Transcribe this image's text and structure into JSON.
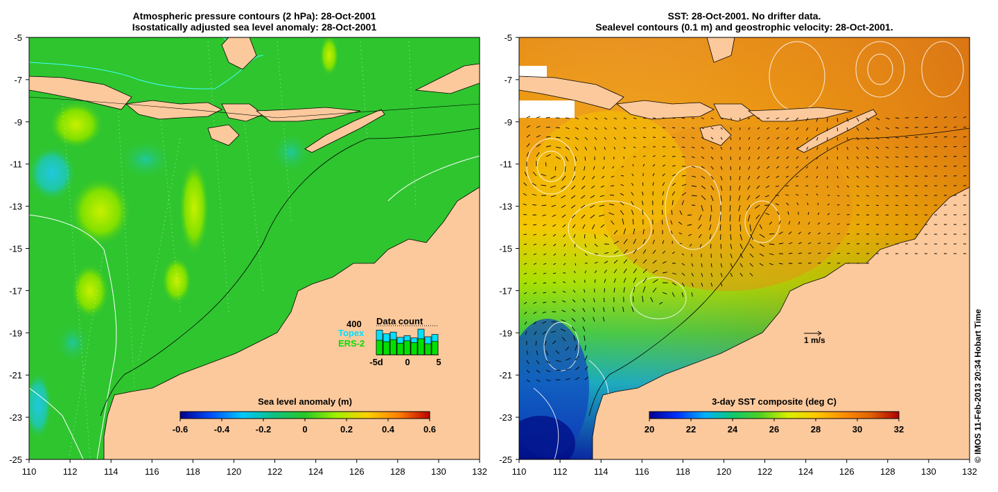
{
  "left_panel": {
    "title_line1": "Atmospheric pressure contours (2 hPa): 28-Oct-2001",
    "title_line2": "Isostatically adjusted sea level anomaly: 28-Oct-2001",
    "x_ticks": [
      "110",
      "112",
      "114",
      "116",
      "118",
      "120",
      "122",
      "124",
      "126",
      "128",
      "130",
      "132"
    ],
    "y_ticks": [
      "-5",
      "-7",
      "-9",
      "-11",
      "-13",
      "-15",
      "-17",
      "-19",
      "-21",
      "-23",
      "-25"
    ],
    "colorbar": {
      "label": "Sea level anomaly (m)",
      "ticks": [
        "-0.6",
        "-0.4",
        "-0.2",
        "0",
        "0.2",
        "0.4",
        "0.6"
      ],
      "colors": [
        "#00008f",
        "#0050ff",
        "#00c8ff",
        "#10c080",
        "#28c828",
        "#a0f000",
        "#ffd000",
        "#ff8000",
        "#c00000"
      ]
    },
    "data_count": {
      "title": "Data count",
      "max_label": "400",
      "series": [
        {
          "name": "Topex",
          "color": "#00e0ff"
        },
        {
          "name": "ERS-2",
          "color": "#00e000"
        }
      ],
      "x_ticks": [
        "-5d",
        "0",
        "5"
      ],
      "topex_values": [
        0.85,
        0.72,
        0.78,
        0.6,
        0.66,
        0.58,
        0.88,
        0.62,
        0.7
      ],
      "ers_values": [
        0.5,
        0.45,
        0.52,
        0.4,
        0.48,
        0.42,
        0.55,
        0.38,
        0.46
      ]
    },
    "colors": {
      "land": "#fbc99c",
      "ocean": "#2fc52f"
    }
  },
  "right_panel": {
    "title_line1": "SST: 28-Oct-2001. No drifter data.",
    "title_line2": "Sealevel contours (0.1 m) and geostrophic velocity: 28-Oct-2001.",
    "x_ticks": [
      "110",
      "112",
      "114",
      "116",
      "118",
      "120",
      "122",
      "124",
      "126",
      "128",
      "130",
      "132"
    ],
    "y_ticks": [
      "-5",
      "-7",
      "-9",
      "-11",
      "-13",
      "-15",
      "-17",
      "-19",
      "-21",
      "-23",
      "-25"
    ],
    "colorbar": {
      "label": "3-day SST composite (deg C)",
      "ticks": [
        "20",
        "22",
        "24",
        "26",
        "28",
        "30",
        "32"
      ],
      "colors": [
        "#000090",
        "#0030ff",
        "#00b0ff",
        "#10c870",
        "#50d020",
        "#d8f000",
        "#ffc800",
        "#ff9000",
        "#e06000",
        "#b00000"
      ]
    },
    "velocity_scale": "1 m/s",
    "colors": {
      "land": "#fbc99c",
      "warm": "#e8901a",
      "cool": "#2060e0"
    }
  },
  "credit": "© IMOS 11-Feb-2013 20:34 Hobart Time"
}
